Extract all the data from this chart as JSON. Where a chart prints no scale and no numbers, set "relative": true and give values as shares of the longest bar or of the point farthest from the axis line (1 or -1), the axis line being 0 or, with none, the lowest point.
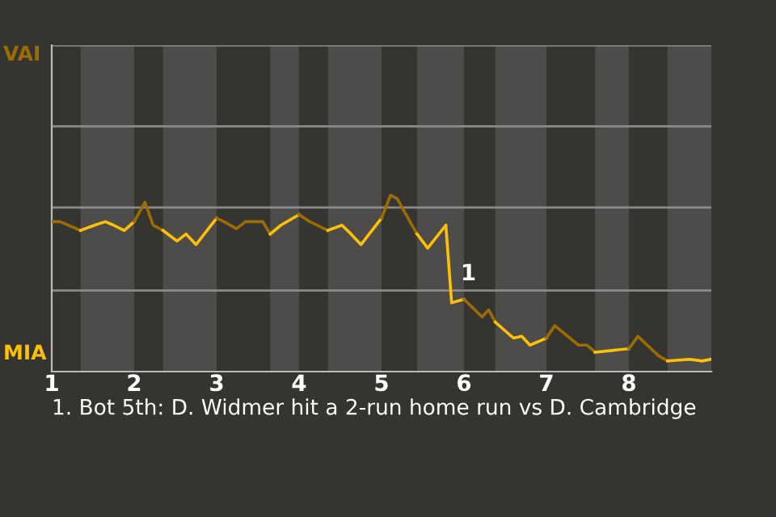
{
  "chart_data": {
    "type": "line",
    "relative": true,
    "series": [
      {
        "color": "#9b6c00",
        "x": [
          1,
          1.1,
          1.35
        ],
        "values": [
          0.85,
          0.85,
          0.8
        ]
      },
      {
        "color": "#ffc000",
        "x": [
          1.35,
          1.52,
          1.65,
          1.75,
          1.88,
          2
        ],
        "values": [
          0.8,
          0.83,
          0.85,
          0.83,
          0.8,
          0.85
        ]
      },
      {
        "color": "#9b6c00",
        "x": [
          2,
          2.13,
          2.23,
          2.35
        ],
        "values": [
          0.85,
          0.96,
          0.83,
          0.8
        ]
      },
      {
        "color": "#ffc000",
        "x": [
          2.35,
          2.52,
          2.63,
          2.75,
          3
        ],
        "values": [
          0.8,
          0.74,
          0.78,
          0.72,
          0.87
        ]
      },
      {
        "color": "#9b6c00",
        "x": [
          3,
          3.09,
          3.24,
          3.35,
          3.56,
          3.65
        ],
        "values": [
          0.87,
          0.85,
          0.81,
          0.85,
          0.85,
          0.78
        ]
      },
      {
        "color": "#ffc000",
        "x": [
          3.65,
          3.78,
          4
        ],
        "values": [
          0.78,
          0.83,
          0.89
        ]
      },
      {
        "color": "#9b6c00",
        "x": [
          4,
          4.13,
          4.35
        ],
        "values": [
          0.89,
          0.85,
          0.8
        ]
      },
      {
        "color": "#ffc000",
        "x": [
          4.35,
          4.52,
          4.63,
          4.75,
          5
        ],
        "values": [
          0.8,
          0.83,
          0.78,
          0.72,
          0.87
        ]
      },
      {
        "color": "#9b6c00",
        "x": [
          5,
          5.11,
          5.19,
          5.43
        ],
        "values": [
          0.87,
          1,
          0.98,
          0.78
        ]
      },
      {
        "color": "#ffc000",
        "x": [
          5.43,
          5.56,
          5.78,
          5.85,
          6
        ],
        "values": [
          0.78,
          0.7,
          0.83,
          0.39,
          0.41
        ]
      },
      {
        "color": "#9b6c00",
        "x": [
          6,
          6.22,
          6.3,
          6.38
        ],
        "values": [
          0.41,
          0.31,
          0.35,
          0.28
        ]
      },
      {
        "color": "#ffc000",
        "x": [
          6.38,
          6.6,
          6.7,
          6.8,
          7
        ],
        "values": [
          0.28,
          0.19,
          0.2,
          0.15,
          0.19
        ]
      },
      {
        "color": "#9b6c00",
        "x": [
          7,
          7.1,
          7.39,
          7.49,
          7.59
        ],
        "values": [
          0.19,
          0.26,
          0.15,
          0.15,
          0.11
        ]
      },
      {
        "color": "#ffc000",
        "x": [
          7.59,
          8
        ],
        "values": [
          0.11,
          0.13
        ]
      },
      {
        "color": "#9b6c00",
        "x": [
          8,
          8.11,
          8.36,
          8.47
        ],
        "values": [
          0.13,
          0.2,
          0.09,
          0.06
        ]
      },
      {
        "color": "#ffc000",
        "x": [
          8.47,
          8.74,
          8.89,
          9
        ],
        "values": [
          0.06,
          0.07,
          0.06,
          0.07
        ]
      }
    ],
    "xlim": [
      1,
      9
    ],
    "xticks": [
      1,
      2,
      3,
      4,
      5,
      6,
      7,
      8
    ],
    "ref_lines": [
      {
        "axis": "y",
        "value": 0.46,
        "color": "#8a8a8a"
      },
      {
        "axis": "y",
        "value": 0.93,
        "color": "#8a8a8a"
      },
      {
        "axis": "y",
        "value": 1.39,
        "color": "#8a8a8a"
      },
      {
        "axis": "y",
        "value": 1.85,
        "color": "#8a8a8a"
      }
    ],
    "bands": [
      {
        "axis": "x",
        "from": 1.35,
        "to": 2,
        "color": "#4d4c4a"
      },
      {
        "axis": "x",
        "from": 2.35,
        "to": 3,
        "color": "#4d4c4a"
      },
      {
        "axis": "x",
        "from": 3.65,
        "to": 4,
        "color": "#4d4c4a"
      },
      {
        "axis": "x",
        "from": 4.35,
        "to": 5,
        "color": "#4d4c4a"
      },
      {
        "axis": "x",
        "from": 5.43,
        "to": 6,
        "color": "#4d4c4a"
      },
      {
        "axis": "x",
        "from": 6.38,
        "to": 7,
        "color": "#4d4c4a"
      },
      {
        "axis": "x",
        "from": 7.59,
        "to": 8,
        "color": "#4d4c4a"
      },
      {
        "axis": "x",
        "from": 8.47,
        "to": 9,
        "color": "#4d4c4a"
      }
    ],
    "annotations": [
      "VAI",
      "MIA",
      {
        "text": "1",
        "x": 5.85,
        "y": 0.39
      },
      "1. Bot 5th: D. Widmer hit a 2-run home run vs D. Cambridge"
    ]
  }
}
